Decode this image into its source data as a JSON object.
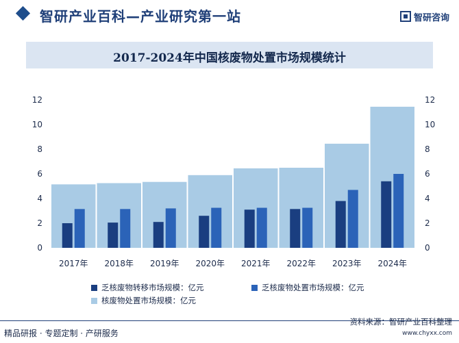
{
  "header": {
    "site_title": "智研产业百科—产业研究第一站",
    "logo_text": "智研咨询"
  },
  "footer": {
    "left_text": "精品研报 · 专题定制 · 产研服务",
    "source_text": "资料来源：智研产业百科整理",
    "url": "www.chyxx.com"
  },
  "colors": {
    "transfer": "#1a3e80",
    "disposal": "#2b63b8",
    "nuclear": "#a9cbe5",
    "brand": "#1f3f78"
  },
  "chart_data": {
    "type": "bar",
    "title": "2017-2024年中国核废物处置市场规模统计",
    "categories": [
      "2017年",
      "2018年",
      "2019年",
      "2020年",
      "2021年",
      "2022年",
      "2023年",
      "2024年"
    ],
    "series": [
      {
        "name": "乏核废物转移市场规模：亿元",
        "values": [
          2.0,
          2.05,
          2.1,
          2.6,
          3.1,
          3.15,
          3.8,
          5.4
        ]
      },
      {
        "name": "乏核废物处置市场规模：亿元",
        "values": [
          3.15,
          3.15,
          3.2,
          3.25,
          3.25,
          3.25,
          4.7,
          6.0
        ]
      },
      {
        "name": "核废物处置市场规模：亿元",
        "values": [
          5.15,
          5.25,
          5.35,
          5.9,
          6.45,
          6.5,
          8.45,
          11.45
        ]
      }
    ],
    "yticks": [
      0,
      2,
      4,
      6,
      8,
      10,
      12
    ],
    "ylim": [
      0,
      12
    ],
    "grid": false,
    "legend_position": "bottom"
  }
}
